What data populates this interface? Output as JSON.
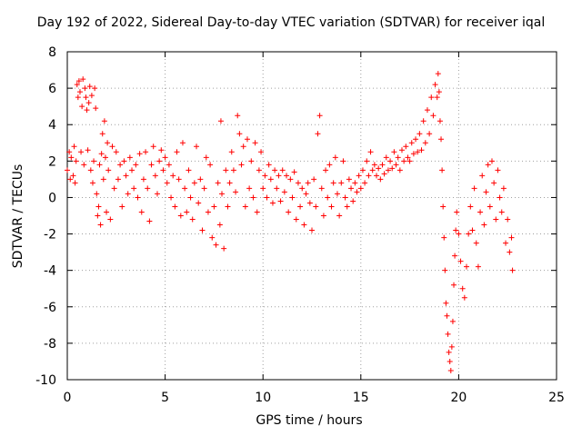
{
  "chart_data": {
    "type": "scatter",
    "title": "Day 192 of 2022, Sidereal Day-to-day VTEC variation (SDTVAR) for receiver iqal",
    "xlabel": "GPS time / hours",
    "ylabel": "SDTVAR / TECUs",
    "xlim": [
      0,
      25
    ],
    "ylim": [
      -10,
      8
    ],
    "xticks": [
      "0",
      "5",
      "10",
      "15",
      "20",
      "25"
    ],
    "yticks": [
      "-10",
      "-8",
      "-6",
      "-4",
      "-2",
      "0",
      "2",
      "4",
      "6",
      "8"
    ],
    "grid": true,
    "marker": "+",
    "color": "#ff0000",
    "series": [
      {
        "name": "SDTVAR",
        "points": [
          [
            0.0,
            1.5
          ],
          [
            0.1,
            2.5
          ],
          [
            0.15,
            1.0
          ],
          [
            0.2,
            2.2
          ],
          [
            0.3,
            1.2
          ],
          [
            0.35,
            2.8
          ],
          [
            0.4,
            0.8
          ],
          [
            0.45,
            2.0
          ],
          [
            0.5,
            6.2
          ],
          [
            0.55,
            5.5
          ],
          [
            0.6,
            6.4
          ],
          [
            0.65,
            5.8
          ],
          [
            0.7,
            2.5
          ],
          [
            0.75,
            5.0
          ],
          [
            0.8,
            6.5
          ],
          [
            0.85,
            1.8
          ],
          [
            0.9,
            6.0
          ],
          [
            0.95,
            5.5
          ],
          [
            1.0,
            4.8
          ],
          [
            1.05,
            2.6
          ],
          [
            1.1,
            5.2
          ],
          [
            1.15,
            6.1
          ],
          [
            1.2,
            1.5
          ],
          [
            1.25,
            5.6
          ],
          [
            1.3,
            0.8
          ],
          [
            1.35,
            2.0
          ],
          [
            1.4,
            6.0
          ],
          [
            1.45,
            4.9
          ],
          [
            1.5,
            0.2
          ],
          [
            1.55,
            -1.0
          ],
          [
            1.6,
            -0.5
          ],
          [
            1.65,
            1.8
          ],
          [
            1.7,
            -1.5
          ],
          [
            1.75,
            2.4
          ],
          [
            1.8,
            3.5
          ],
          [
            1.85,
            1.0
          ],
          [
            1.9,
            4.2
          ],
          [
            1.95,
            2.2
          ],
          [
            2.0,
            -0.8
          ],
          [
            2.05,
            3.0
          ],
          [
            2.1,
            1.5
          ],
          [
            2.2,
            -1.2
          ],
          [
            2.3,
            2.8
          ],
          [
            2.4,
            0.5
          ],
          [
            2.5,
            2.5
          ],
          [
            2.6,
            1.0
          ],
          [
            2.7,
            1.8
          ],
          [
            2.8,
            -0.5
          ],
          [
            2.9,
            2.0
          ],
          [
            3.0,
            1.2
          ],
          [
            3.1,
            0.2
          ],
          [
            3.2,
            2.2
          ],
          [
            3.3,
            1.5
          ],
          [
            3.4,
            0.5
          ],
          [
            3.5,
            1.8
          ],
          [
            3.6,
            0.0
          ],
          [
            3.7,
            2.4
          ],
          [
            3.8,
            -0.8
          ],
          [
            3.9,
            1.0
          ],
          [
            4.0,
            2.5
          ],
          [
            4.1,
            0.5
          ],
          [
            4.2,
            -1.3
          ],
          [
            4.3,
            1.8
          ],
          [
            4.4,
            2.8
          ],
          [
            4.5,
            1.2
          ],
          [
            4.6,
            0.2
          ],
          [
            4.7,
            2.0
          ],
          [
            4.8,
            2.6
          ],
          [
            4.9,
            1.5
          ],
          [
            5.0,
            2.2
          ],
          [
            5.1,
            0.8
          ],
          [
            5.2,
            1.8
          ],
          [
            5.3,
            0.0
          ],
          [
            5.4,
            1.2
          ],
          [
            5.5,
            -0.5
          ],
          [
            5.6,
            2.5
          ],
          [
            5.7,
            1.0
          ],
          [
            5.8,
            -1.0
          ],
          [
            5.9,
            3.0
          ],
          [
            6.0,
            0.5
          ],
          [
            6.1,
            -0.8
          ],
          [
            6.2,
            1.5
          ],
          [
            6.3,
            0.0
          ],
          [
            6.4,
            -1.2
          ],
          [
            6.5,
            0.8
          ],
          [
            6.6,
            2.8
          ],
          [
            6.7,
            -0.3
          ],
          [
            6.8,
            1.0
          ],
          [
            6.9,
            -1.8
          ],
          [
            7.0,
            0.5
          ],
          [
            7.1,
            2.2
          ],
          [
            7.2,
            -0.8
          ],
          [
            7.3,
            1.8
          ],
          [
            7.4,
            -2.2
          ],
          [
            7.5,
            -0.5
          ],
          [
            7.6,
            -2.6
          ],
          [
            7.7,
            0.8
          ],
          [
            7.8,
            -1.5
          ],
          [
            7.85,
            4.2
          ],
          [
            7.9,
            0.2
          ],
          [
            8.0,
            -2.8
          ],
          [
            8.1,
            1.5
          ],
          [
            8.2,
            -0.5
          ],
          [
            8.3,
            0.8
          ],
          [
            8.4,
            2.5
          ],
          [
            8.5,
            1.5
          ],
          [
            8.6,
            0.3
          ],
          [
            8.7,
            4.5
          ],
          [
            8.8,
            3.5
          ],
          [
            8.9,
            1.8
          ],
          [
            9.0,
            2.8
          ],
          [
            9.1,
            -0.5
          ],
          [
            9.2,
            3.2
          ],
          [
            9.3,
            0.5
          ],
          [
            9.4,
            2.0
          ],
          [
            9.5,
            0.0
          ],
          [
            9.6,
            3.0
          ],
          [
            9.7,
            -0.8
          ],
          [
            9.8,
            1.5
          ],
          [
            9.9,
            2.5
          ],
          [
            10.0,
            0.5
          ],
          [
            10.1,
            1.2
          ],
          [
            10.2,
            0.0
          ],
          [
            10.3,
            1.8
          ],
          [
            10.4,
            1.0
          ],
          [
            10.5,
            -0.3
          ],
          [
            10.6,
            1.5
          ],
          [
            10.7,
            0.5
          ],
          [
            10.8,
            1.2
          ],
          [
            10.9,
            -0.2
          ],
          [
            11.0,
            1.5
          ],
          [
            11.1,
            0.3
          ],
          [
            11.2,
            1.2
          ],
          [
            11.3,
            -0.8
          ],
          [
            11.4,
            1.0
          ],
          [
            11.5,
            0.0
          ],
          [
            11.6,
            1.4
          ],
          [
            11.7,
            -1.2
          ],
          [
            11.8,
            0.8
          ],
          [
            11.9,
            -0.5
          ],
          [
            12.0,
            0.5
          ],
          [
            12.1,
            -1.5
          ],
          [
            12.2,
            0.2
          ],
          [
            12.3,
            0.8
          ],
          [
            12.4,
            -0.3
          ],
          [
            12.5,
            -1.8
          ],
          [
            12.6,
            1.0
          ],
          [
            12.7,
            -0.5
          ],
          [
            12.8,
            3.5
          ],
          [
            12.9,
            4.5
          ],
          [
            13.0,
            0.5
          ],
          [
            13.1,
            -1.0
          ],
          [
            13.2,
            1.5
          ],
          [
            13.3,
            0.0
          ],
          [
            13.4,
            1.8
          ],
          [
            13.5,
            -0.5
          ],
          [
            13.6,
            0.8
          ],
          [
            13.7,
            2.2
          ],
          [
            13.8,
            0.2
          ],
          [
            13.9,
            -1.0
          ],
          [
            14.0,
            0.8
          ],
          [
            14.1,
            2.0
          ],
          [
            14.2,
            0.0
          ],
          [
            14.3,
            -0.5
          ],
          [
            14.4,
            1.0
          ],
          [
            14.5,
            0.5
          ],
          [
            14.6,
            -0.2
          ],
          [
            14.7,
            0.8
          ],
          [
            14.8,
            0.3
          ],
          [
            14.9,
            1.2
          ],
          [
            15.0,
            0.5
          ],
          [
            15.1,
            1.5
          ],
          [
            15.2,
            0.8
          ],
          [
            15.3,
            2.0
          ],
          [
            15.4,
            1.2
          ],
          [
            15.5,
            2.5
          ],
          [
            15.6,
            1.5
          ],
          [
            15.7,
            1.8
          ],
          [
            15.8,
            1.2
          ],
          [
            15.9,
            1.6
          ],
          [
            16.0,
            1.0
          ],
          [
            16.1,
            1.8
          ],
          [
            16.2,
            1.3
          ],
          [
            16.3,
            2.2
          ],
          [
            16.4,
            1.5
          ],
          [
            16.5,
            2.0
          ],
          [
            16.6,
            1.6
          ],
          [
            16.7,
            2.5
          ],
          [
            16.8,
            1.8
          ],
          [
            16.9,
            2.2
          ],
          [
            17.0,
            1.5
          ],
          [
            17.1,
            2.6
          ],
          [
            17.2,
            2.0
          ],
          [
            17.3,
            2.8
          ],
          [
            17.4,
            2.2
          ],
          [
            17.5,
            2.0
          ],
          [
            17.6,
            3.0
          ],
          [
            17.7,
            2.4
          ],
          [
            17.8,
            3.2
          ],
          [
            17.9,
            2.5
          ],
          [
            18.0,
            3.5
          ],
          [
            18.1,
            2.6
          ],
          [
            18.2,
            4.2
          ],
          [
            18.3,
            3.0
          ],
          [
            18.4,
            4.8
          ],
          [
            18.5,
            3.5
          ],
          [
            18.6,
            5.5
          ],
          [
            18.7,
            4.5
          ],
          [
            18.8,
            6.2
          ],
          [
            18.9,
            5.5
          ],
          [
            18.95,
            6.8
          ],
          [
            19.0,
            5.8
          ],
          [
            19.05,
            4.2
          ],
          [
            19.1,
            3.2
          ],
          [
            19.15,
            1.5
          ],
          [
            19.2,
            -0.5
          ],
          [
            19.25,
            -2.2
          ],
          [
            19.3,
            -4.0
          ],
          [
            19.35,
            -5.8
          ],
          [
            19.4,
            -6.5
          ],
          [
            19.45,
            -7.5
          ],
          [
            19.5,
            -8.5
          ],
          [
            19.55,
            -9.0
          ],
          [
            19.6,
            -9.5
          ],
          [
            19.65,
            -8.2
          ],
          [
            19.7,
            -6.8
          ],
          [
            19.75,
            -4.8
          ],
          [
            19.8,
            -3.2
          ],
          [
            19.85,
            -1.8
          ],
          [
            19.9,
            -0.8
          ],
          [
            20.0,
            -2.0
          ],
          [
            20.1,
            -3.5
          ],
          [
            20.2,
            -5.0
          ],
          [
            20.3,
            -5.5
          ],
          [
            20.4,
            -3.8
          ],
          [
            20.5,
            -2.0
          ],
          [
            20.6,
            -0.5
          ],
          [
            20.7,
            -1.8
          ],
          [
            20.8,
            0.5
          ],
          [
            20.9,
            -2.5
          ],
          [
            21.0,
            -3.8
          ],
          [
            21.1,
            -0.8
          ],
          [
            21.2,
            1.2
          ],
          [
            21.3,
            -1.5
          ],
          [
            21.4,
            0.3
          ],
          [
            21.5,
            1.8
          ],
          [
            21.6,
            -0.5
          ],
          [
            21.7,
            2.0
          ],
          [
            21.8,
            0.8
          ],
          [
            21.9,
            -1.2
          ],
          [
            22.0,
            1.5
          ],
          [
            22.1,
            0.0
          ],
          [
            22.2,
            -0.8
          ],
          [
            22.3,
            0.5
          ],
          [
            22.4,
            -2.5
          ],
          [
            22.5,
            -1.2
          ],
          [
            22.6,
            -3.0
          ],
          [
            22.7,
            -2.2
          ],
          [
            22.75,
            -4.0
          ]
        ]
      }
    ]
  }
}
